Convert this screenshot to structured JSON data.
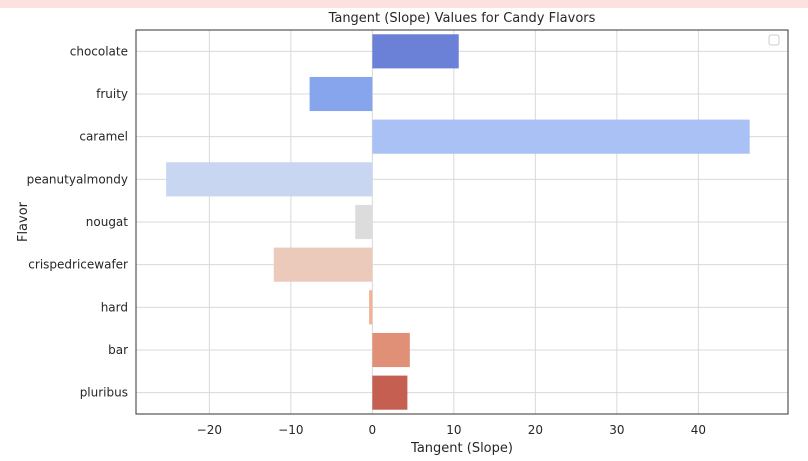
{
  "chart_data": {
    "type": "bar",
    "orientation": "horizontal",
    "title": "Tangent (Slope) Values for Candy Flavors",
    "xlabel": "Tangent (Slope)",
    "ylabel": "Flavor",
    "categories": [
      "chocolate",
      "fruity",
      "caramel",
      "peanutyalmondy",
      "nougat",
      "crispedricewafer",
      "hard",
      "bar",
      "pluribus"
    ],
    "values": [
      10.6,
      -7.7,
      46.3,
      -25.3,
      -2.1,
      -12.1,
      -0.4,
      4.6,
      4.3
    ],
    "colors": [
      "#6b80d7",
      "#87a5ec",
      "#a9c1f5",
      "#c8d6f1",
      "#dcdcdc",
      "#eccabb",
      "#f1b396",
      "#e09077",
      "#c55f52"
    ],
    "xlim": [
      -29,
      51
    ],
    "xticks": [
      -20,
      -10,
      0,
      10,
      20,
      30,
      40
    ],
    "xtick_labels": [
      "−20",
      "−10",
      "0",
      "10",
      "20",
      "30",
      "40"
    ],
    "grid": true,
    "legend": "top-right"
  }
}
